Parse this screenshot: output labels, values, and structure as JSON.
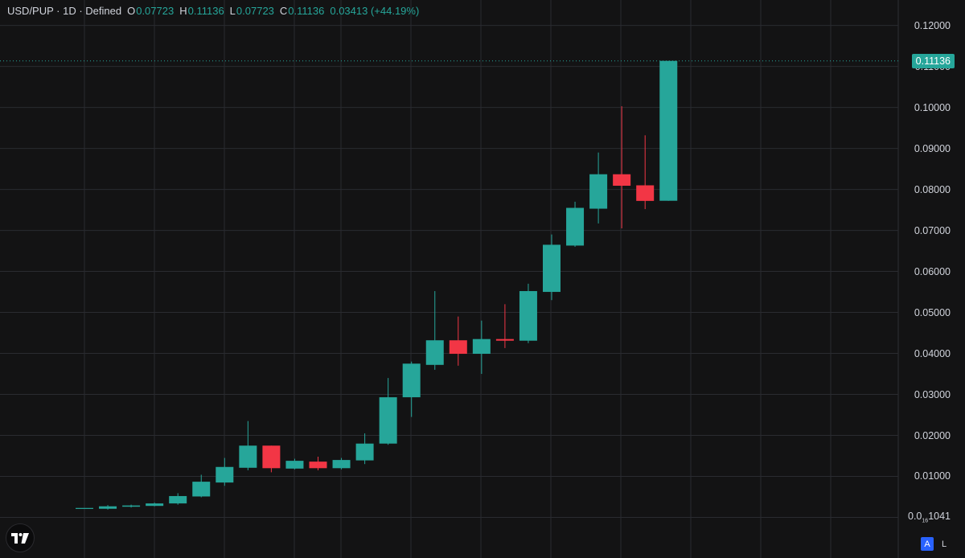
{
  "legend": {
    "symbol": "USD/PUP · 1D · Defined",
    "open_label": "O",
    "open_value": "0.07723",
    "high_label": "H",
    "high_value": "0.11136",
    "low_label": "L",
    "low_value": "0.07723",
    "close_label": "C",
    "close_value": "0.11136",
    "change": "0.03413 (+44.19%)"
  },
  "price_tag": {
    "label": "0.11136",
    "value": 0.11136
  },
  "axis_buttons": {
    "auto": "A",
    "log": "L"
  },
  "colors": {
    "background": "#131314",
    "grid": "#2a2b30",
    "up": "#26a69a",
    "down": "#f23645",
    "text": "#d1d4dc"
  },
  "chart_data": {
    "type": "candlestick",
    "y_ticks": [
      "0.12000",
      "0.11000",
      "0.10000",
      "0.09000",
      "0.08000",
      "0.07000",
      "0.06000",
      "0.05000",
      "0.04000",
      "0.03000",
      "0.02000",
      "0.01000"
    ],
    "y_bottom_label": {
      "prefix": "0.0",
      "subscript": "16",
      "suffix": "1041"
    },
    "ylim": [
      -0.0003,
      0.1215
    ],
    "grid": true,
    "candles": [
      {
        "o": 0.0023,
        "h": 0.0023,
        "l": 0.0023,
        "c": 0.0023
      },
      {
        "o": 0.0021,
        "h": 0.003,
        "l": 0.0019,
        "c": 0.0027
      },
      {
        "o": 0.0026,
        "h": 0.0031,
        "l": 0.0024,
        "c": 0.0029
      },
      {
        "o": 0.0028,
        "h": 0.0036,
        "l": 0.0027,
        "c": 0.0034
      },
      {
        "o": 0.0034,
        "h": 0.0059,
        "l": 0.0031,
        "c": 0.0052
      },
      {
        "o": 0.0051,
        "h": 0.0104,
        "l": 0.0049,
        "c": 0.0087
      },
      {
        "o": 0.0085,
        "h": 0.0145,
        "l": 0.0077,
        "c": 0.0123
      },
      {
        "o": 0.0121,
        "h": 0.0235,
        "l": 0.0115,
        "c": 0.0175
      },
      {
        "o": 0.0175,
        "h": 0.0175,
        "l": 0.011,
        "c": 0.012
      },
      {
        "o": 0.0119,
        "h": 0.0143,
        "l": 0.0117,
        "c": 0.0138
      },
      {
        "o": 0.0136,
        "h": 0.0148,
        "l": 0.0115,
        "c": 0.012
      },
      {
        "o": 0.012,
        "h": 0.0145,
        "l": 0.0117,
        "c": 0.014
      },
      {
        "o": 0.0139,
        "h": 0.0205,
        "l": 0.013,
        "c": 0.018
      },
      {
        "o": 0.018,
        "h": 0.034,
        "l": 0.0177,
        "c": 0.0293
      },
      {
        "o": 0.0293,
        "h": 0.038,
        "l": 0.0245,
        "c": 0.0375
      },
      {
        "o": 0.0372,
        "h": 0.0552,
        "l": 0.036,
        "c": 0.0432
      },
      {
        "o": 0.0432,
        "h": 0.049,
        "l": 0.037,
        "c": 0.0399
      },
      {
        "o": 0.0399,
        "h": 0.048,
        "l": 0.035,
        "c": 0.0435
      },
      {
        "o": 0.0435,
        "h": 0.052,
        "l": 0.0413,
        "c": 0.0431
      },
      {
        "o": 0.0431,
        "h": 0.057,
        "l": 0.0425,
        "c": 0.0552
      },
      {
        "o": 0.055,
        "h": 0.069,
        "l": 0.053,
        "c": 0.0665
      },
      {
        "o": 0.0663,
        "h": 0.077,
        "l": 0.066,
        "c": 0.0755
      },
      {
        "o": 0.0753,
        "h": 0.089,
        "l": 0.0717,
        "c": 0.0837
      },
      {
        "o": 0.0837,
        "h": 0.1003,
        "l": 0.0705,
        "c": 0.0809
      },
      {
        "o": 0.081,
        "h": 0.0932,
        "l": 0.0752,
        "c": 0.0772
      },
      {
        "o": 0.07723,
        "h": 0.11136,
        "l": 0.07723,
        "c": 0.11136
      }
    ]
  }
}
